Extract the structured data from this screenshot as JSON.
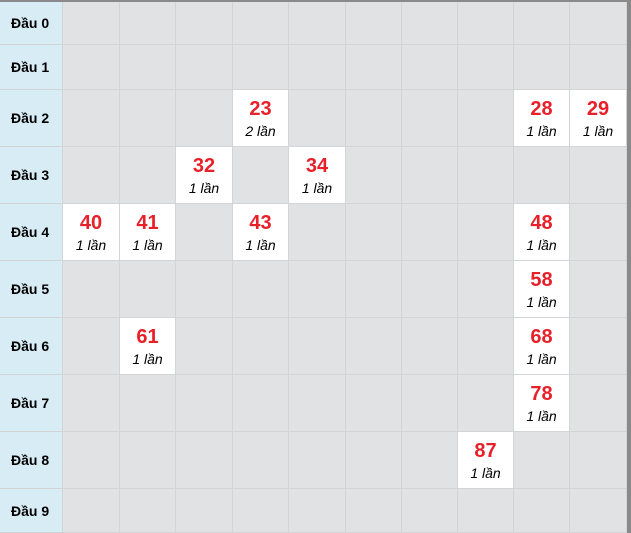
{
  "rows": [
    {
      "label": "Đầu 0",
      "hits": []
    },
    {
      "label": "Đầu 1",
      "hits": []
    },
    {
      "label": "Đầu 2",
      "hits": [
        {
          "col": 3,
          "num": "23",
          "count": "2 lần"
        },
        {
          "col": 8,
          "num": "28",
          "count": "1 lần"
        },
        {
          "col": 9,
          "num": "29",
          "count": "1 lần"
        }
      ]
    },
    {
      "label": "Đầu 3",
      "hits": [
        {
          "col": 2,
          "num": "32",
          "count": "1 lần"
        },
        {
          "col": 4,
          "num": "34",
          "count": "1 lần"
        }
      ]
    },
    {
      "label": "Đầu 4",
      "hits": [
        {
          "col": 0,
          "num": "40",
          "count": "1 lần"
        },
        {
          "col": 1,
          "num": "41",
          "count": "1 lần"
        },
        {
          "col": 3,
          "num": "43",
          "count": "1 lần"
        },
        {
          "col": 8,
          "num": "48",
          "count": "1 lần"
        }
      ]
    },
    {
      "label": "Đầu 5",
      "hits": [
        {
          "col": 8,
          "num": "58",
          "count": "1 lần"
        }
      ]
    },
    {
      "label": "Đầu 6",
      "hits": [
        {
          "col": 1,
          "num": "61",
          "count": "1 lần"
        },
        {
          "col": 8,
          "num": "68",
          "count": "1 lần"
        }
      ]
    },
    {
      "label": "Đầu 7",
      "hits": [
        {
          "col": 8,
          "num": "78",
          "count": "1 lần"
        }
      ]
    },
    {
      "label": "Đầu 8",
      "hits": [
        {
          "col": 7,
          "num": "87",
          "count": "1 lần"
        }
      ]
    },
    {
      "label": "Đầu 9",
      "hits": []
    }
  ],
  "colors": {
    "number": "#e8202a",
    "header_bg": "#d8ecf5",
    "empty_bg": "#e1e2e4",
    "hit_bg": "#ffffff"
  }
}
